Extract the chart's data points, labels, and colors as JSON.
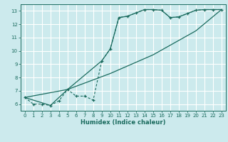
{
  "xlabel": "Humidex (Indice chaleur)",
  "bg_color": "#cceaed",
  "grid_color": "#ffffff",
  "line_color": "#1a6b5e",
  "xlim": [
    -0.5,
    23.5
  ],
  "ylim": [
    5.5,
    13.5
  ],
  "xticks": [
    0,
    1,
    2,
    3,
    4,
    5,
    6,
    7,
    8,
    9,
    10,
    11,
    12,
    13,
    14,
    15,
    16,
    17,
    18,
    19,
    20,
    21,
    22,
    23
  ],
  "yticks": [
    6,
    7,
    8,
    9,
    10,
    11,
    12,
    13
  ],
  "line1_x": [
    0,
    1,
    2,
    3,
    4,
    5,
    6,
    7,
    8,
    9,
    10,
    11,
    12,
    13,
    14,
    15,
    16,
    17,
    18,
    19,
    20,
    21,
    22,
    23
  ],
  "line1_y": [
    6.5,
    6.0,
    6.0,
    5.9,
    6.25,
    7.1,
    6.6,
    6.6,
    6.3,
    9.25,
    10.15,
    12.5,
    12.6,
    12.85,
    13.1,
    13.1,
    13.05,
    12.5,
    12.55,
    12.8,
    13.05,
    13.1,
    13.1,
    13.1
  ],
  "line2_x": [
    0,
    5,
    10,
    15,
    20,
    23
  ],
  "line2_y": [
    6.5,
    7.1,
    8.3,
    9.7,
    11.5,
    13.1
  ],
  "line3_x": [
    0,
    3,
    5,
    9,
    10,
    11,
    12,
    13,
    14,
    15,
    16,
    17,
    18,
    19,
    20,
    21,
    22,
    23
  ],
  "line3_y": [
    6.5,
    5.9,
    7.1,
    9.25,
    10.15,
    12.5,
    12.6,
    12.85,
    13.1,
    13.1,
    13.05,
    12.5,
    12.55,
    12.8,
    13.05,
    13.1,
    13.1,
    13.1
  ]
}
